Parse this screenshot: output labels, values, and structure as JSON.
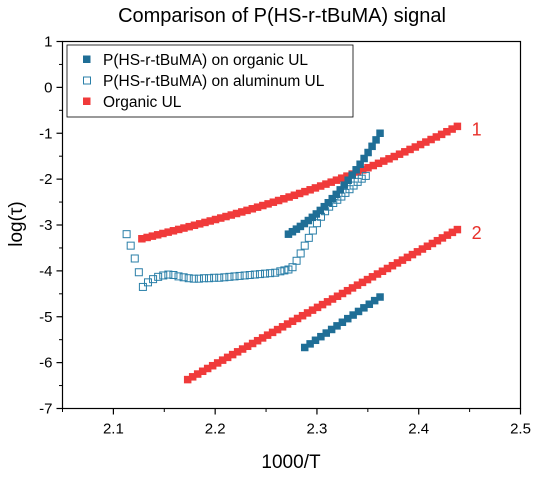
{
  "chart_data": {
    "type": "scatter",
    "title": "Comparison of P(HS-r-tBuMA) signal",
    "xlabel": "1000/T",
    "ylabel": "log(τ)",
    "xlim": [
      2.05,
      2.5
    ],
    "ylim": [
      -7,
      1
    ],
    "xticks": [
      2.1,
      2.2,
      2.3,
      2.4,
      2.5
    ],
    "yticks": [
      -7,
      -6,
      -5,
      -4,
      -3,
      -2,
      -1,
      0,
      1
    ],
    "xtick_labels": [
      "2.1",
      "2.2",
      "2.3",
      "2.4",
      "2.5"
    ],
    "ytick_labels": [
      "-7",
      "-6",
      "-5",
      "-4",
      "-3",
      "-2",
      "-1",
      "0",
      "1"
    ],
    "grid": false,
    "legend_position": "top-left",
    "colors": {
      "hs_filled": "#1f6e96",
      "hs_open": "#2a7fa8",
      "organic": "#f03a3a",
      "annotation": "#e8302a"
    },
    "annotations": [
      {
        "text": "1",
        "x": 2.452,
        "y": -1.05
      },
      {
        "text": "2",
        "x": 2.452,
        "y": -3.3
      }
    ],
    "series": [
      {
        "name": "P(HS-r-tBuMA) on organic UL",
        "marker": "filled-square",
        "segments": [
          {
            "x_start": 2.272,
            "x_end": 2.362,
            "y_start": -3.2,
            "y_end": -1.0,
            "count": 24,
            "shape": "rise"
          },
          {
            "x_start": 2.288,
            "x_end": 2.362,
            "y_start": -5.67,
            "y_end": -4.57,
            "count": 15,
            "shape": "linear"
          }
        ]
      },
      {
        "name": "P(HS-r-tBuMA) on aluminum UL",
        "marker": "open-square",
        "points": [
          [
            2.113,
            -3.2
          ],
          [
            2.117,
            -3.45
          ],
          [
            2.121,
            -3.73
          ],
          [
            2.125,
            -4.03
          ],
          [
            2.129,
            -4.35
          ],
          [
            2.134,
            -4.25
          ],
          [
            2.139,
            -4.18
          ],
          [
            2.144,
            -4.13
          ],
          [
            2.149,
            -4.1
          ],
          [
            2.154,
            -4.08
          ],
          [
            2.159,
            -4.09
          ],
          [
            2.164,
            -4.12
          ],
          [
            2.169,
            -4.14
          ],
          [
            2.174,
            -4.16
          ],
          [
            2.179,
            -4.17
          ],
          [
            2.184,
            -4.17
          ],
          [
            2.189,
            -4.16
          ],
          [
            2.194,
            -4.16
          ],
          [
            2.199,
            -4.15
          ],
          [
            2.204,
            -4.15
          ],
          [
            2.209,
            -4.14
          ],
          [
            2.214,
            -4.13
          ],
          [
            2.219,
            -4.12
          ],
          [
            2.224,
            -4.11
          ],
          [
            2.229,
            -4.1
          ],
          [
            2.234,
            -4.09
          ],
          [
            2.239,
            -4.08
          ],
          [
            2.244,
            -4.07
          ],
          [
            2.249,
            -4.06
          ],
          [
            2.254,
            -4.05
          ],
          [
            2.259,
            -4.04
          ],
          [
            2.264,
            -4.01
          ],
          [
            2.268,
            -3.99
          ],
          [
            2.272,
            -3.97
          ],
          [
            2.276,
            -3.92
          ],
          [
            2.28,
            -3.78
          ],
          [
            2.284,
            -3.62
          ],
          [
            2.288,
            -3.45
          ],
          [
            2.292,
            -3.28
          ],
          [
            2.296,
            -3.12
          ],
          [
            2.3,
            -2.96
          ],
          [
            2.304,
            -2.82
          ],
          [
            2.308,
            -2.7
          ],
          [
            2.312,
            -2.6
          ],
          [
            2.316,
            -2.52
          ],
          [
            2.32,
            -2.45
          ],
          [
            2.324,
            -2.38
          ],
          [
            2.328,
            -2.3
          ],
          [
            2.332,
            -2.22
          ],
          [
            2.336,
            -2.14
          ],
          [
            2.34,
            -2.06
          ],
          [
            2.344,
            -1.99
          ],
          [
            2.348,
            -1.93
          ]
        ]
      },
      {
        "name": "Organic UL",
        "marker": "filled-square",
        "segments": [
          {
            "x_start": 2.128,
            "x_end": 2.438,
            "y_start": -3.3,
            "y_end": -0.85,
            "count": 61,
            "shape": "curve"
          },
          {
            "x_start": 2.173,
            "x_end": 2.438,
            "y_start": -6.37,
            "y_end": -3.1,
            "count": 55,
            "shape": "linear"
          }
        ]
      }
    ]
  }
}
